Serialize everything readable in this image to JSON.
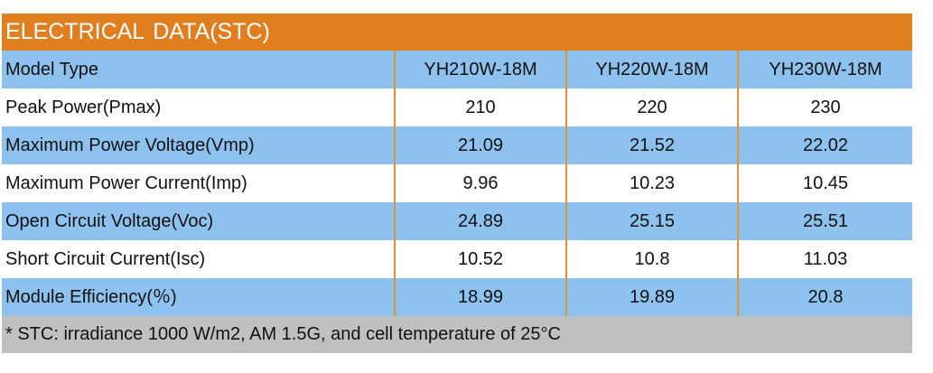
{
  "title": "ELECTRICAL  DATA(STC)",
  "colors": {
    "header": "#E17F20",
    "blue_row": "#8DC1EE",
    "footer": "#C0C0C0"
  },
  "rows": [
    {
      "label": "Model Type",
      "values": [
        "YH210W-18M",
        "YH220W-18M",
        "YH230W-18M"
      ],
      "blue": true
    },
    {
      "label": "Peak Power(Pmax)",
      "values": [
        "210",
        "220",
        "230"
      ],
      "blue": false
    },
    {
      "label": "Maximum Power Voltage(Vmp)",
      "values": [
        "21.09",
        "21.52",
        "22.02"
      ],
      "blue": true
    },
    {
      "label": "Maximum Power Current(Imp)",
      "values": [
        "9.96",
        "10.23",
        "10.45"
      ],
      "blue": false
    },
    {
      "label": "Open Circuit Voltage(Voc)",
      "values": [
        "24.89",
        "25.15",
        "25.51"
      ],
      "blue": true
    },
    {
      "label": "Short Circuit Current(Isc)",
      "values": [
        "10.52",
        "10.8",
        "11.03"
      ],
      "blue": false
    },
    {
      "label": "Module Efficiency(％)",
      "values": [
        "18.99",
        "19.89",
        "20.8"
      ],
      "blue": true
    }
  ],
  "footnote": "* STC:  irradiance 1000 W/m2, AM 1.5G, and cell temperature of 25°C"
}
